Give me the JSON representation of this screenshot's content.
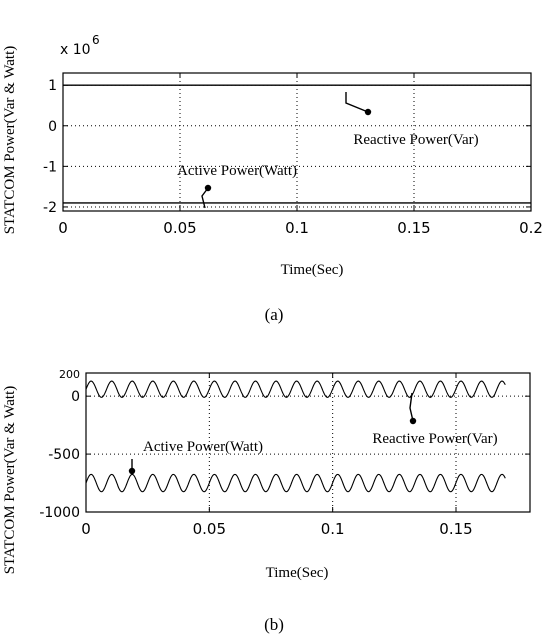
{
  "chart_data": [
    {
      "type": "line",
      "panel_label": "(a)",
      "xlabel": "Time(Sec)",
      "ylabel": "STATCOM Power(Var & Watt)",
      "y_exponent_label": "x 10",
      "y_exponent_power": "6",
      "xlim": [
        0,
        0.2
      ],
      "ylim": [
        -2.1,
        1.3
      ],
      "x_ticks": [
        0,
        0.05,
        0.1,
        0.15,
        0.2
      ],
      "x_tick_labels": [
        "0",
        "0.05",
        "0.1",
        "0.15",
        "0.2"
      ],
      "y_ticks": [
        1,
        0,
        -1,
        -2
      ],
      "y_tick_labels": [
        "1",
        "0",
        "-1",
        "-2"
      ],
      "grid": true,
      "series": [
        {
          "name": "Reactive Power(Var)",
          "x": [
            0,
            0.2
          ],
          "y": [
            1.0,
            1.0
          ]
        },
        {
          "name": "Active Power(Watt)",
          "x": [
            0,
            0.2
          ],
          "y": [
            -1.9,
            -1.9
          ]
        }
      ],
      "annotations": [
        {
          "text": "Reactive Power(Var)",
          "arrow_to": [
            0.13,
            1.0
          ]
        },
        {
          "text": "Active Power(Watt)",
          "arrow_to": [
            0.06,
            -1.9
          ]
        }
      ]
    },
    {
      "type": "line",
      "panel_label": "(b)",
      "xlabel": "Time(Sec)",
      "ylabel": "STATCOM Power(Var & Watt)",
      "xlim": [
        0,
        0.18
      ],
      "ylim": [
        -1000,
        200
      ],
      "x_ticks": [
        0,
        0.05,
        0.1,
        0.15
      ],
      "x_tick_labels": [
        "0",
        "0.05",
        "0.1",
        "0.15"
      ],
      "y_ticks": [
        200,
        0,
        -500,
        -1000
      ],
      "y_tick_labels": [
        "200",
        "0",
        "-500",
        "-1000"
      ],
      "grid": true,
      "series": [
        {
          "name": "Reactive Power(Var)",
          "x_start": 0,
          "x_end": 0.17,
          "mean": 60,
          "amplitude": 70,
          "period": 0.00833
        },
        {
          "name": "Active Power(Watt)",
          "x_start": 0,
          "x_end": 0.17,
          "mean": -750,
          "amplitude": 75,
          "period": 0.00833
        }
      ],
      "annotations": [
        {
          "text": "Reactive Power(Var)",
          "arrow_to": [
            0.13,
            60
          ]
        },
        {
          "text": "Active Power(Watt)",
          "arrow_to": [
            0.02,
            -750
          ]
        }
      ]
    }
  ]
}
